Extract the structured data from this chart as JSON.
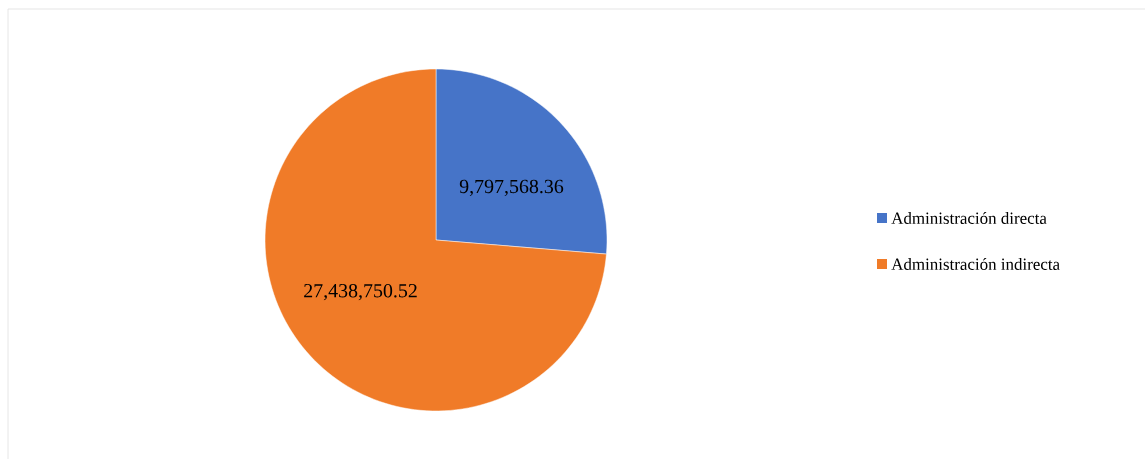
{
  "chart_data": {
    "type": "pie",
    "categories": [
      "Administración directa",
      "Administración indirecta"
    ],
    "values": [
      9797568.36,
      27438750.52
    ],
    "value_labels": [
      "9,797,568.36",
      "27,438,750.52"
    ],
    "colors": [
      "#4674c8",
      "#f07b28"
    ],
    "legend": "right"
  }
}
